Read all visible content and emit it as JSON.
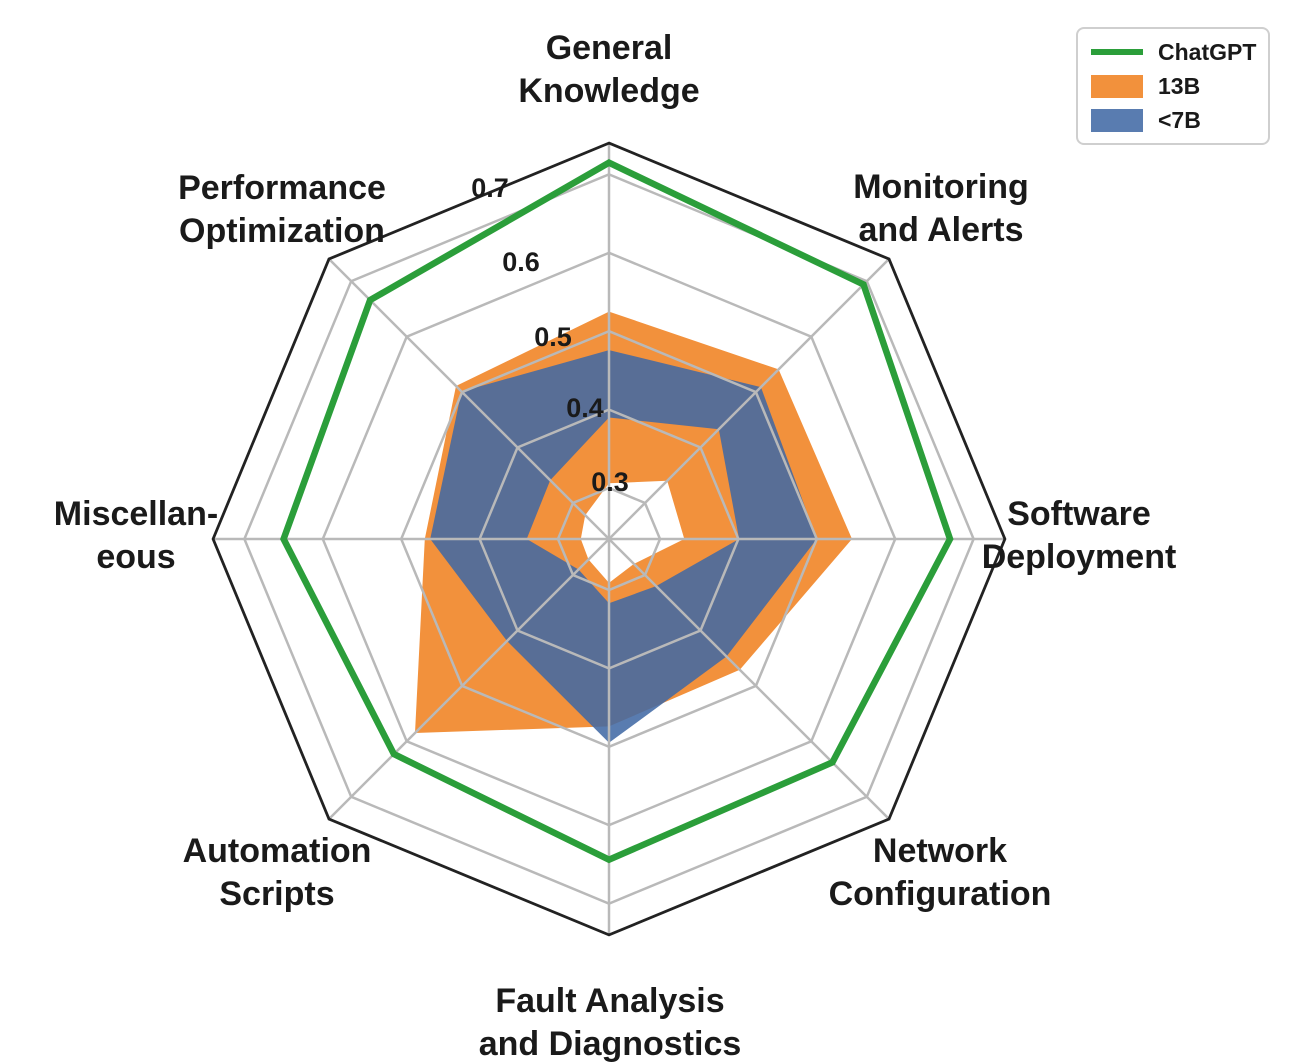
{
  "chart_data": {
    "type": "radar",
    "title": "",
    "categories": [
      "General\nKnowledge",
      "Monitoring\nand Alerts",
      "Software\nDeployment",
      "Network\nConfiguration",
      "Fault Analysis\nand Diagnostics",
      "Automation\nScripts",
      "Miscellan-\neous",
      "Performance\nOptimization"
    ],
    "radial_axis": {
      "tick_labels": [
        "0.3",
        "0.4",
        "0.5",
        "0.6",
        "0.7"
      ],
      "tick_values": [
        0.3,
        0.4,
        0.5,
        0.6,
        0.7
      ],
      "min": 0.235,
      "max": 0.74,
      "grid": true
    },
    "series": [
      {
        "name": "ChatGPT",
        "style": "line",
        "color": "#2b9e3a",
        "values": [
          0.715,
          0.694,
          0.67,
          0.638,
          0.644,
          0.623,
          0.65,
          0.666
        ]
      },
      {
        "name": "13B",
        "style": "band",
        "color": "#f2913c",
        "outer": [
          0.525,
          0.541,
          0.545,
          0.471,
          0.474,
          0.585,
          0.47,
          0.511
        ],
        "inner": [
          0.306,
          0.34,
          0.331,
          0.28,
          0.291,
          0.272,
          0.271,
          0.278
        ]
      },
      {
        "name": "<7B",
        "style": "band",
        "color": "rgba(64,105,164,0.87)",
        "outer": [
          0.476,
          0.509,
          0.5,
          0.447,
          0.495,
          0.419,
          0.463,
          0.501
        ],
        "inner": [
          0.39,
          0.433,
          0.401,
          0.32,
          0.317,
          0.29,
          0.34,
          0.341
        ]
      }
    ],
    "legend_position": "top-right",
    "colors": {
      "grid": "#b9b9b9",
      "outer_frame": "#222222",
      "text": "#1a1a1a",
      "background": "#ffffff"
    }
  }
}
